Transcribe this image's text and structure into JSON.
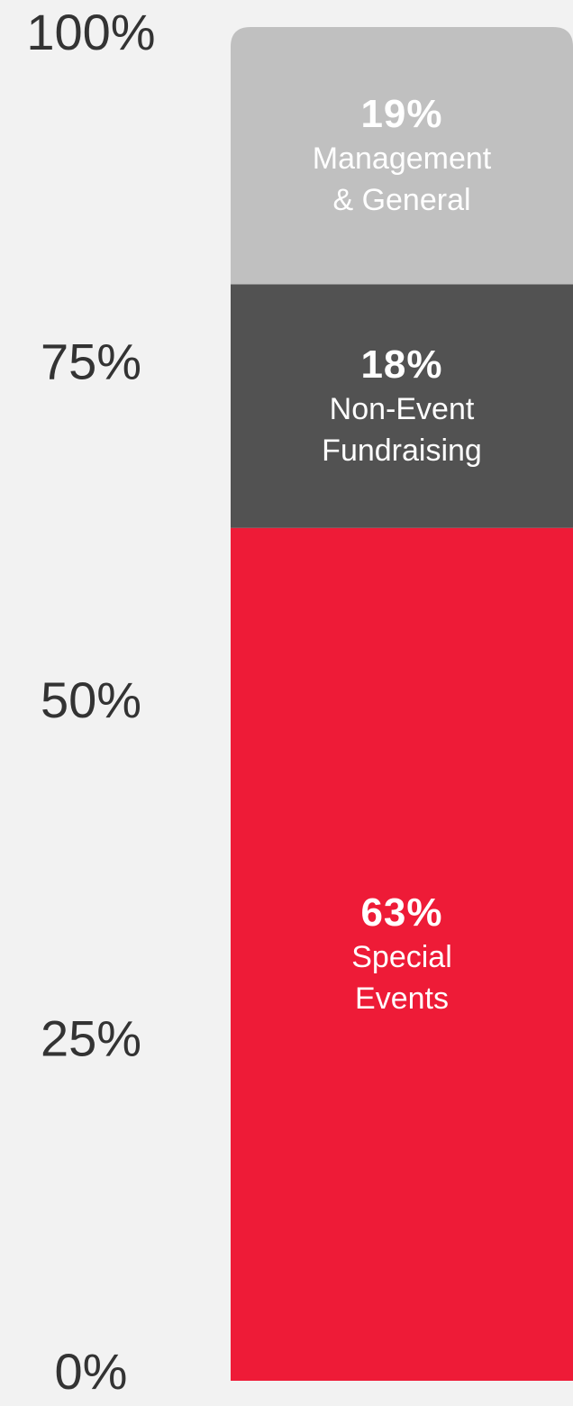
{
  "chart_data": {
    "type": "stacked-bar",
    "series": [
      {
        "name": "Special Events",
        "color": "#ee1b37",
        "values": [
          63
        ],
        "value_labels": [
          "63%"
        ]
      },
      {
        "name": "Non-Event Fundraising",
        "color": "#525252",
        "values": [
          18
        ],
        "value_labels": [
          "18%"
        ]
      },
      {
        "name": "Management & General",
        "color": "#c0c0c0",
        "values": [
          19
        ],
        "value_labels": [
          "19%"
        ]
      }
    ],
    "ylim": [
      0,
      100
    ],
    "yticks": [
      {
        "value": 0,
        "label": "0%"
      },
      {
        "value": 25,
        "label": "25%"
      },
      {
        "value": 50,
        "label": "50%"
      },
      {
        "value": 75,
        "label": "75%"
      },
      {
        "value": 100,
        "label": "100%"
      }
    ]
  }
}
